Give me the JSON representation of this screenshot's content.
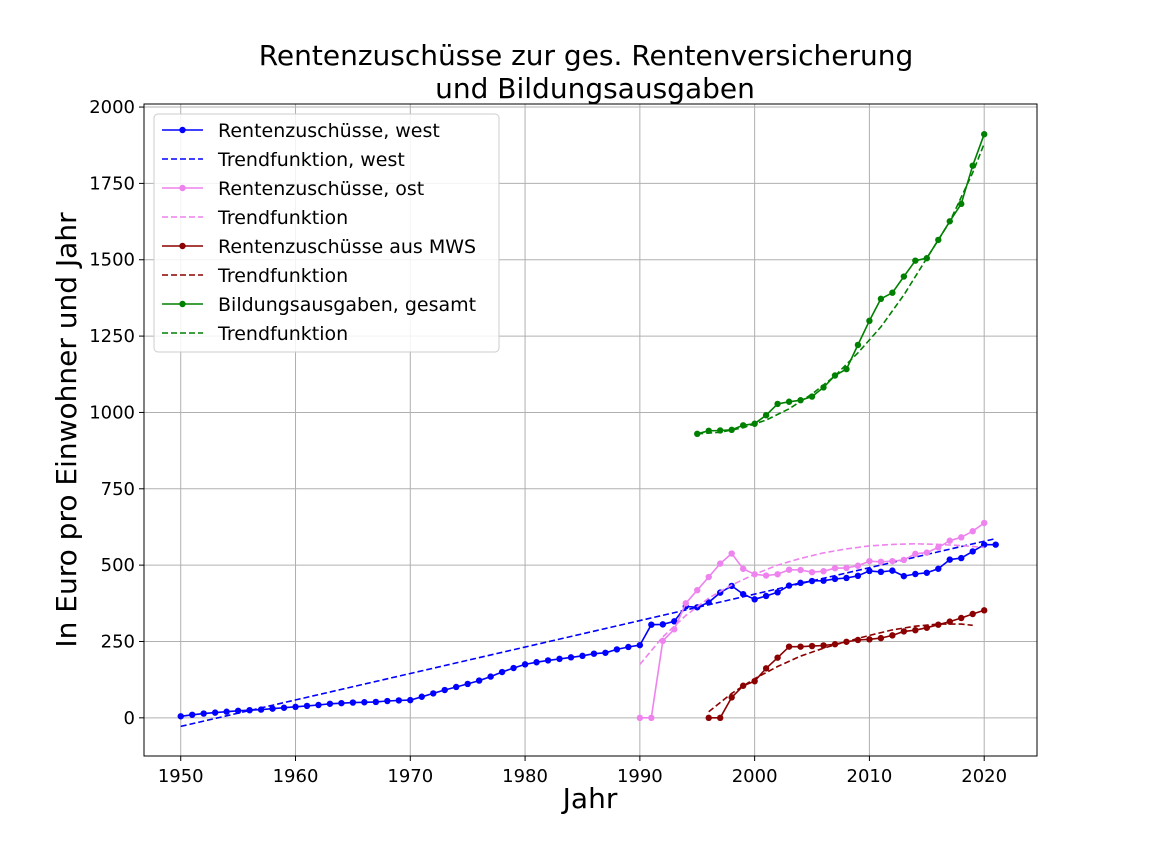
{
  "chart_data": {
    "type": "line",
    "title_line1": "Rentenzuschüsse zur ges. Rentenversicherung",
    "title_line2": "und Bildungsausgaben",
    "xlabel": "Jahr",
    "ylabel": "In Euro pro Einwohner und Jahr",
    "xlim": [
      1946.8,
      2024.6
    ],
    "ylim": [
      -125,
      2010
    ],
    "xticks": [
      1950,
      1960,
      1970,
      1980,
      1990,
      2000,
      2010,
      2020
    ],
    "yticks": [
      0,
      250,
      500,
      750,
      1000,
      1250,
      1500,
      1750,
      2000
    ],
    "grid": true,
    "legend_position": "top-left",
    "series": [
      {
        "name": "Rentenzuschüsse, west",
        "color": "#0000ff",
        "style": "solid-marker",
        "x": [
          1950,
          1951,
          1952,
          1953,
          1954,
          1955,
          1956,
          1957,
          1958,
          1959,
          1960,
          1961,
          1962,
          1963,
          1964,
          1965,
          1966,
          1967,
          1968,
          1969,
          1970,
          1971,
          1972,
          1973,
          1974,
          1975,
          1976,
          1977,
          1978,
          1979,
          1980,
          1981,
          1982,
          1983,
          1984,
          1985,
          1986,
          1987,
          1988,
          1989,
          1990,
          1991,
          1992,
          1993,
          1994,
          1995,
          1996,
          1997,
          1998,
          1999,
          2000,
          2001,
          2002,
          2003,
          2004,
          2005,
          2006,
          2007,
          2008,
          2009,
          2010,
          2011,
          2012,
          2013,
          2014,
          2015,
          2016,
          2017,
          2018,
          2019,
          2020,
          2021
        ],
        "y": [
          5,
          10,
          14,
          17,
          20,
          23,
          25,
          27,
          30,
          33,
          36,
          39,
          42,
          46,
          48,
          50,
          51,
          52,
          55,
          57,
          58,
          69,
          80,
          91,
          101,
          111,
          122,
          135,
          150,
          163,
          175,
          182,
          188,
          193,
          198,
          203,
          210,
          213,
          224,
          232,
          238,
          305,
          306,
          316,
          365,
          362,
          378,
          410,
          432,
          405,
          388,
          399,
          411,
          433,
          442,
          448,
          449,
          455,
          458,
          465,
          481,
          478,
          482,
          464,
          471,
          475,
          488,
          518,
          523,
          545,
          567,
          567
        ]
      },
      {
        "name": "Trendfunktion, west",
        "color": "#0000ff",
        "style": "dashed",
        "x": [
          1950,
          2021
        ],
        "y": [
          -28,
          587
        ]
      },
      {
        "name": "Rentenzuschüsse, ost",
        "color": "#ee82ee",
        "style": "solid-marker",
        "x": [
          1990,
          1991,
          1992,
          1993,
          1994,
          1995,
          1996,
          1997,
          1998,
          1999,
          2000,
          2001,
          2002,
          2003,
          2004,
          2005,
          2006,
          2007,
          2008,
          2009,
          2010,
          2011,
          2012,
          2013,
          2014,
          2015,
          2016,
          2017,
          2018,
          2019,
          2020
        ],
        "y": [
          0,
          0,
          252,
          290,
          375,
          418,
          461,
          505,
          538,
          488,
          470,
          466,
          470,
          485,
          484,
          477,
          480,
          490,
          491,
          498,
          513,
          511,
          513,
          517,
          537,
          541,
          558,
          580,
          591,
          611,
          638
        ]
      },
      {
        "name": "Trendfunktion",
        "color": "#ee82ee",
        "style": "dashed",
        "x": [
          1990,
          1992,
          1994,
          1996,
          1998,
          2000,
          2002,
          2004,
          2006,
          2008,
          2010,
          2012,
          2014,
          2016,
          2018,
          2020
        ],
        "y": [
          175,
          265,
          335,
          392,
          435,
          470,
          500,
          522,
          540,
          553,
          563,
          568,
          570,
          568,
          564,
          558
        ]
      },
      {
        "name": "Rentenzuschüsse aus MWS",
        "color": "#8b0000",
        "style": "solid-marker",
        "x": [
          1996,
          1997,
          1998,
          1999,
          2000,
          2001,
          2002,
          2003,
          2004,
          2005,
          2006,
          2007,
          2008,
          2009,
          2010,
          2011,
          2012,
          2013,
          2014,
          2015,
          2016,
          2017,
          2018,
          2019,
          2020
        ],
        "y": [
          0,
          0,
          67,
          105,
          120,
          162,
          197,
          233,
          233,
          235,
          237,
          241,
          249,
          255,
          257,
          261,
          270,
          283,
          287,
          295,
          305,
          315,
          327,
          340,
          352
        ]
      },
      {
        "name": "Trendfunktion",
        "color": "#8b0000",
        "style": "dashed",
        "x": [
          1996,
          1998,
          2000,
          2002,
          2004,
          2006,
          2008,
          2010,
          2012,
          2014,
          2016,
          2018,
          2019
        ],
        "y": [
          20,
          80,
          128,
          168,
          202,
          228,
          250,
          270,
          288,
          300,
          307,
          307,
          303
        ]
      },
      {
        "name": "Bildungsausgaben, gesamt",
        "color": "#008000",
        "style": "solid-marker",
        "x": [
          1995,
          1996,
          1997,
          1998,
          1999,
          2000,
          2001,
          2002,
          2003,
          2004,
          2005,
          2006,
          2007,
          2008,
          2009,
          2010,
          2011,
          2012,
          2013,
          2014,
          2015,
          2016,
          2017,
          2018,
          2019,
          2020
        ],
        "y": [
          930,
          940,
          941,
          943,
          958,
          963,
          991,
          1028,
          1035,
          1040,
          1052,
          1082,
          1121,
          1142,
          1221,
          1300,
          1372,
          1392,
          1445,
          1497,
          1505,
          1565,
          1626,
          1683,
          1808,
          1911
        ]
      },
      {
        "name": "Trendfunktion",
        "color": "#008000",
        "style": "dashed",
        "x": [
          1995,
          1997,
          1999,
          2001,
          2003,
          2005,
          2007,
          2009,
          2011,
          2013,
          2015,
          2017,
          2019,
          2020
        ],
        "y": [
          930,
          935,
          950,
          975,
          1012,
          1060,
          1120,
          1195,
          1280,
          1385,
          1505,
          1625,
          1785,
          1880
        ]
      }
    ]
  }
}
